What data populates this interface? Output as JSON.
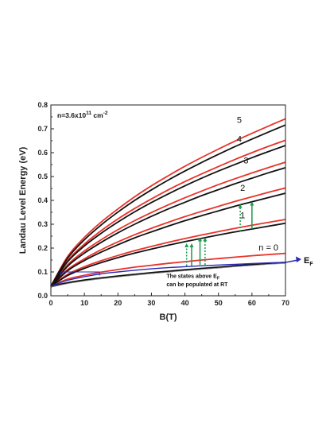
{
  "chart_data": {
    "type": "line",
    "xlabel": "B(T)",
    "ylabel": "Landau Level Energy (eV)",
    "xlim": [
      0,
      70
    ],
    "ylim": [
      0,
      0.8
    ],
    "xticks": [
      "0",
      "10",
      "20",
      "30",
      "40",
      "50",
      "60",
      "70"
    ],
    "yticks": [
      "0.0",
      "0.1",
      "0.2",
      "0.3",
      "0.4",
      "0.5",
      "0.6",
      "0.7",
      "0.8"
    ],
    "density_label": {
      "prefix": "n=3.6x10",
      "exp": "11",
      "unit": " cm",
      "unit_exp": "-2"
    },
    "fermi_label": {
      "main": "E",
      "sub": "F"
    },
    "note": {
      "line1_prefix": "The states above E",
      "line1_sub": "F",
      "line2": "can be populated at RT"
    },
    "level_labels": [
      "n = 0",
      "1",
      "2",
      "3",
      "4",
      "5"
    ],
    "colors": {
      "red": "#e8332a",
      "black": "#111111",
      "blue": "#2a2ab8",
      "green": "#1a9a4a",
      "gray": "#888888"
    },
    "x": [
      0,
      5,
      10,
      15,
      20,
      25,
      30,
      35,
      40,
      45,
      50,
      55,
      60,
      65,
      70
    ],
    "series": [
      {
        "color": "red",
        "values": [
          0.04,
          0.07,
          0.086,
          0.099,
          0.11,
          0.12,
          0.128,
          0.136,
          0.143,
          0.15,
          0.156,
          0.162,
          0.168,
          0.173,
          0.178
        ]
      },
      {
        "color": "black",
        "values": [
          0.04,
          0.055,
          0.066,
          0.075,
          0.083,
          0.09,
          0.097,
          0.103,
          0.109,
          0.115,
          0.12,
          0.126,
          0.131,
          0.136,
          0.14
        ]
      },
      {
        "color": "red",
        "values": [
          0.04,
          0.09,
          0.122,
          0.147,
          0.169,
          0.189,
          0.207,
          0.224,
          0.24,
          0.255,
          0.269,
          0.283,
          0.296,
          0.308,
          0.32
        ]
      },
      {
        "color": "black",
        "values": [
          0.04,
          0.085,
          0.115,
          0.139,
          0.16,
          0.179,
          0.196,
          0.212,
          0.227,
          0.241,
          0.255,
          0.268,
          0.28,
          0.292,
          0.304
        ]
      },
      {
        "color": "red",
        "values": [
          0.04,
          0.11,
          0.155,
          0.193,
          0.226,
          0.256,
          0.283,
          0.308,
          0.332,
          0.354,
          0.375,
          0.396,
          0.415,
          0.434,
          0.452
        ]
      },
      {
        "color": "black",
        "values": [
          0.04,
          0.105,
          0.148,
          0.183,
          0.214,
          0.243,
          0.268,
          0.292,
          0.315,
          0.336,
          0.356,
          0.376,
          0.394,
          0.412,
          0.43
        ]
      },
      {
        "color": "red",
        "values": [
          0.04,
          0.13,
          0.188,
          0.235,
          0.277,
          0.315,
          0.349,
          0.381,
          0.411,
          0.439,
          0.466,
          0.491,
          0.515,
          0.538,
          0.56
        ]
      },
      {
        "color": "black",
        "values": [
          0.04,
          0.124,
          0.179,
          0.224,
          0.264,
          0.3,
          0.333,
          0.364,
          0.392,
          0.42,
          0.445,
          0.47,
          0.493,
          0.516,
          0.537
        ]
      },
      {
        "color": "red",
        "values": [
          0.04,
          0.148,
          0.217,
          0.273,
          0.322,
          0.366,
          0.406,
          0.444,
          0.479,
          0.511,
          0.542,
          0.572,
          0.6,
          0.627,
          0.652
        ]
      },
      {
        "color": "black",
        "values": [
          0.04,
          0.143,
          0.209,
          0.262,
          0.309,
          0.352,
          0.391,
          0.427,
          0.461,
          0.493,
          0.523,
          0.551,
          0.579,
          0.605,
          0.63
        ]
      },
      {
        "color": "red",
        "values": [
          0.04,
          0.165,
          0.245,
          0.309,
          0.364,
          0.415,
          0.461,
          0.503,
          0.543,
          0.58,
          0.615,
          0.649,
          0.681,
          0.712,
          0.742
        ]
      },
      {
        "color": "black",
        "values": [
          0.04,
          0.158,
          0.235,
          0.297,
          0.351,
          0.4,
          0.444,
          0.485,
          0.523,
          0.559,
          0.593,
          0.626,
          0.657,
          0.687,
          0.716
        ]
      },
      {
        "color": "blue",
        "values": [
          0.04,
          0.065,
          0.08,
          0.092,
          0.1,
          0.107,
          0.113,
          0.118,
          0.122,
          0.126,
          0.129,
          0.132,
          0.135,
          0.138,
          0.14
        ]
      }
    ],
    "transitions": [
      {
        "x": 40.5,
        "y0": 0.125,
        "y1": 0.22,
        "color": "green",
        "dotted": true
      },
      {
        "x": 42.0,
        "y0": 0.125,
        "y1": 0.22,
        "color": "green",
        "dotted": false
      },
      {
        "x": 44.5,
        "y0": 0.13,
        "y1": 0.245,
        "color": "green",
        "dotted": false
      },
      {
        "x": 46.0,
        "y0": 0.13,
        "y1": 0.245,
        "color": "green",
        "dotted": true
      },
      {
        "x": 56.5,
        "y0": 0.27,
        "y1": 0.385,
        "color": "green",
        "dotted": true
      },
      {
        "x": 60.0,
        "y0": 0.28,
        "y1": 0.395,
        "color": "green",
        "dotted": false
      }
    ]
  }
}
